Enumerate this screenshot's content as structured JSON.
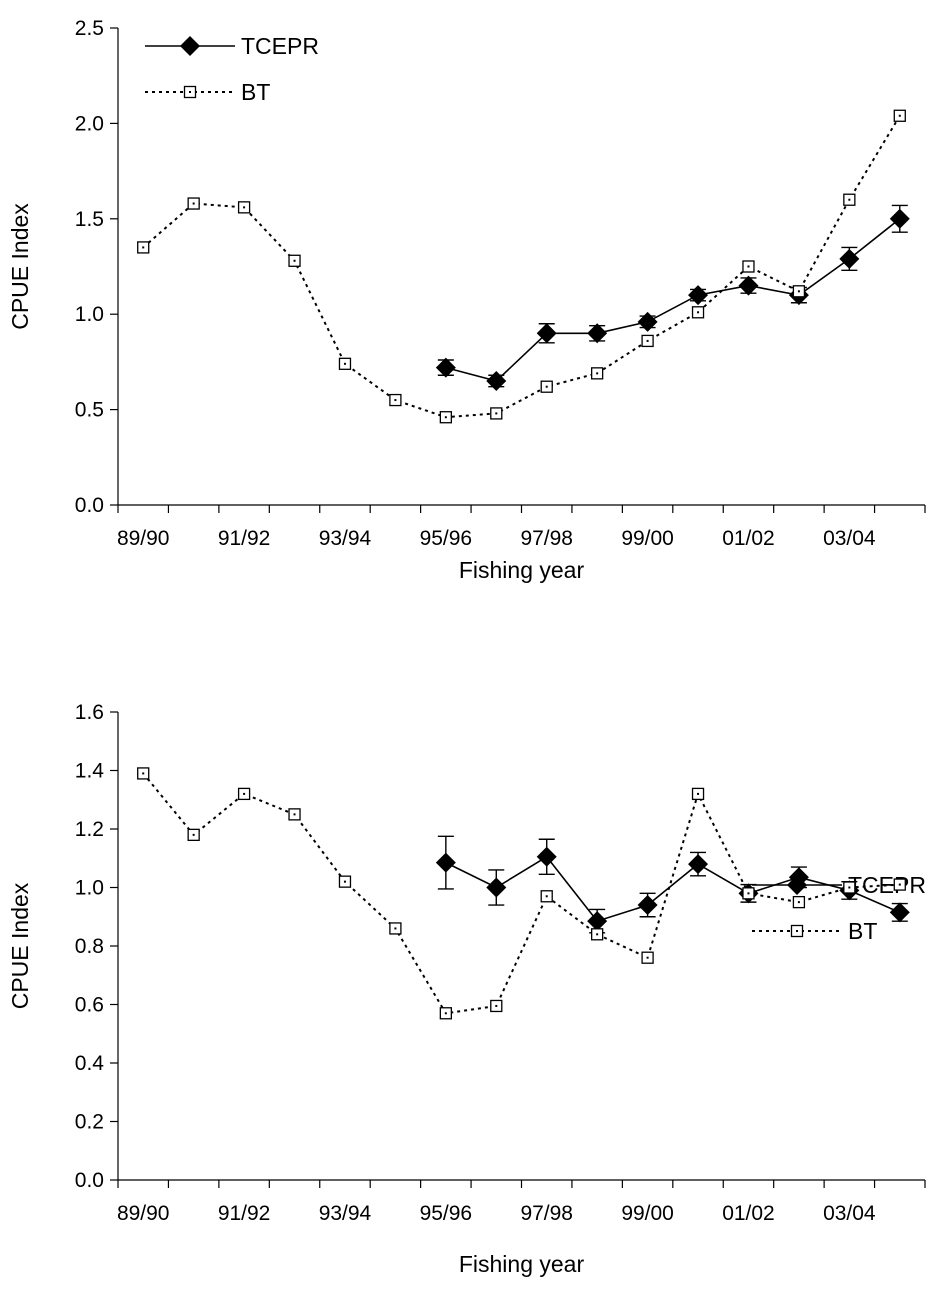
{
  "chart_data": [
    {
      "type": "line",
      "title": "",
      "xlabel": "Fishing year",
      "ylabel": "CPUE Index",
      "ylim": [
        0,
        2.5
      ],
      "yticks": [
        "0.0",
        "0.5",
        "1.0",
        "1.5",
        "2.0",
        "2.5"
      ],
      "yticks_values": [
        0,
        0.5,
        1.0,
        1.5,
        2.0,
        2.5
      ],
      "categories": [
        "89/90",
        "90/91",
        "91/92",
        "92/93",
        "93/94",
        "94/95",
        "95/96",
        "96/97",
        "97/98",
        "98/99",
        "99/00",
        "00/01",
        "01/02",
        "02/03",
        "03/04",
        "04/05"
      ],
      "xtick_labels": [
        "89/90",
        "91/92",
        "93/94",
        "95/96",
        "97/98",
        "99/00",
        "01/02",
        "03/04"
      ],
      "legend_position": "top-left",
      "series": [
        {
          "name": "TCEPR",
          "style": "solid-diamond",
          "color": "#000000",
          "values": [
            null,
            null,
            null,
            null,
            null,
            null,
            0.72,
            0.65,
            0.9,
            0.9,
            0.96,
            1.1,
            1.15,
            1.1,
            1.29,
            1.5
          ],
          "error": [
            null,
            null,
            null,
            null,
            null,
            null,
            0.04,
            0.03,
            0.05,
            0.04,
            0.03,
            0.03,
            0.04,
            0.04,
            0.06,
            0.07
          ]
        },
        {
          "name": "BT",
          "style": "dotted-square",
          "color": "#000000",
          "values": [
            1.35,
            1.58,
            1.56,
            1.28,
            0.74,
            0.55,
            0.46,
            0.48,
            0.62,
            0.69,
            0.86,
            1.01,
            1.25,
            1.12,
            1.6,
            2.04
          ]
        }
      ]
    },
    {
      "type": "line",
      "title": "",
      "xlabel": "Fishing year",
      "ylabel": "CPUE Index",
      "ylim": [
        0,
        1.6
      ],
      "yticks": [
        "0.0",
        "0.2",
        "0.4",
        "0.6",
        "0.8",
        "1.0",
        "1.2",
        "1.4",
        "1.6"
      ],
      "yticks_values": [
        0,
        0.2,
        0.4,
        0.6,
        0.8,
        1.0,
        1.2,
        1.4,
        1.6
      ],
      "categories": [
        "89/90",
        "90/91",
        "91/92",
        "92/93",
        "93/94",
        "94/95",
        "95/96",
        "96/97",
        "97/98",
        "98/99",
        "99/00",
        "00/01",
        "01/02",
        "02/03",
        "03/04",
        "04/05"
      ],
      "xtick_labels": [
        "89/90",
        "91/92",
        "93/94",
        "95/96",
        "97/98",
        "99/00",
        "01/02",
        "03/04"
      ],
      "legend_position": "bottom-right",
      "series": [
        {
          "name": "TCEPR",
          "style": "solid-diamond",
          "color": "#000000",
          "values": [
            null,
            null,
            null,
            null,
            null,
            null,
            1.085,
            1.0,
            1.105,
            0.885,
            0.94,
            1.08,
            0.98,
            1.035,
            0.99,
            0.915
          ],
          "error": [
            null,
            null,
            null,
            null,
            null,
            null,
            0.09,
            0.06,
            0.06,
            0.04,
            0.04,
            0.04,
            0.03,
            0.035,
            0.03,
            0.03
          ]
        },
        {
          "name": "BT",
          "style": "dotted-square",
          "color": "#000000",
          "values": [
            1.39,
            1.18,
            1.32,
            1.25,
            1.02,
            0.86,
            0.57,
            0.595,
            0.97,
            0.84,
            0.76,
            1.32,
            0.98,
            0.95,
            1.0,
            1.01
          ]
        }
      ]
    }
  ]
}
